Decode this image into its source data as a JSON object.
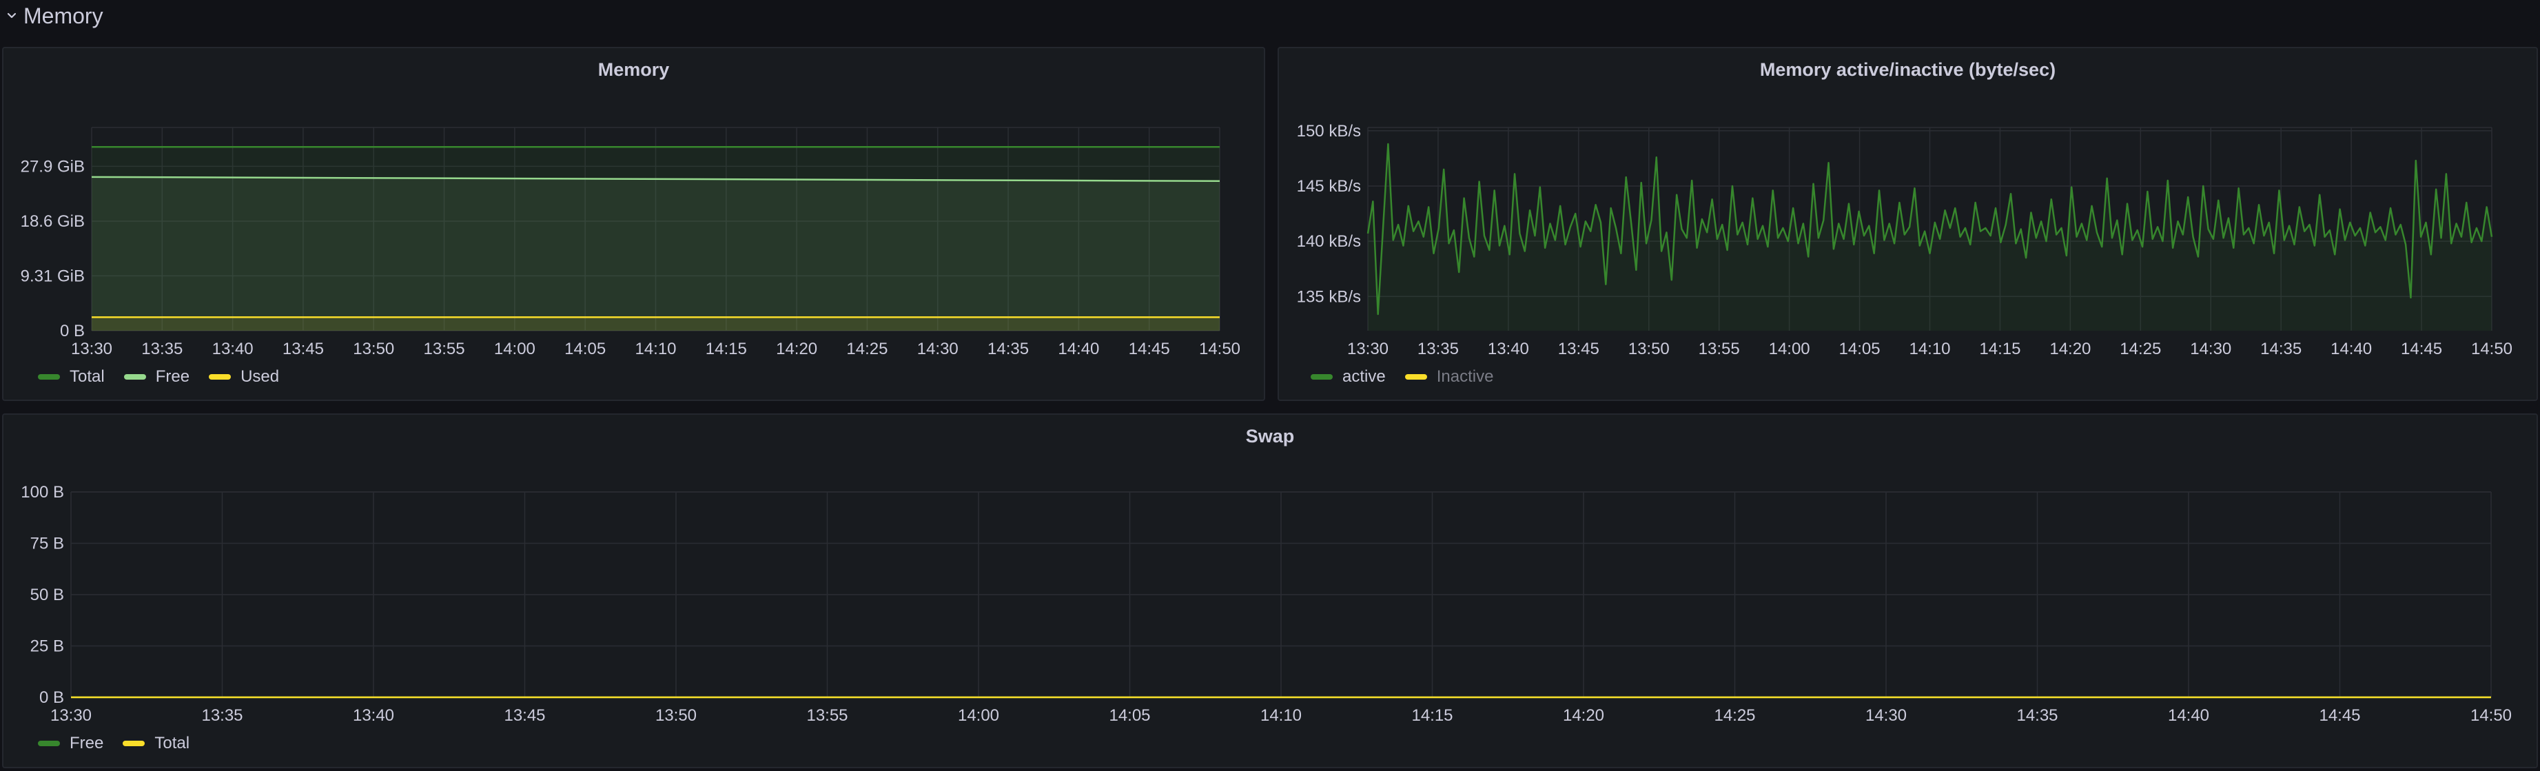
{
  "row": {
    "title": "Memory"
  },
  "panels": {
    "memory": {
      "title": "Memory",
      "legend": [
        {
          "name": "Total",
          "color": "#37872d"
        },
        {
          "name": "Free",
          "color": "#96d98d"
        },
        {
          "name": "Used",
          "color": "#fade2a"
        }
      ]
    },
    "active": {
      "title": "Memory active/inactive (byte/sec)",
      "legend": [
        {
          "name": "active",
          "color": "#37872d"
        },
        {
          "name": "Inactive",
          "color": "#fade2a"
        }
      ]
    },
    "swap": {
      "title": "Swap",
      "legend": [
        {
          "name": "Free",
          "color": "#37872d"
        },
        {
          "name": "Total",
          "color": "#fade2a"
        }
      ]
    }
  },
  "chart_data": [
    {
      "id": "memory",
      "type": "area",
      "title": "Memory",
      "unit": "GiB",
      "x_ticks": [
        "13:30",
        "13:35",
        "13:40",
        "13:45",
        "13:50",
        "13:55",
        "14:00",
        "14:05",
        "14:10",
        "14:15",
        "14:20",
        "14:25",
        "14:30",
        "14:35",
        "14:40",
        "14:45",
        "14:50"
      ],
      "y_ticks": [
        {
          "value": 0,
          "label": "0 B"
        },
        {
          "value": 9.31,
          "label": "9.31 GiB"
        },
        {
          "value": 18.6,
          "label": "18.6 GiB"
        },
        {
          "value": 27.9,
          "label": "27.9 GiB"
        }
      ],
      "ylim": [
        0,
        34.5
      ],
      "series": [
        {
          "name": "Total",
          "color": "#37872d",
          "x": [
            "13:30",
            "14:50"
          ],
          "values": [
            31.2,
            31.2
          ]
        },
        {
          "name": "Free",
          "color": "#96d98d",
          "x": [
            "13:30",
            "14:50"
          ],
          "values": [
            26.1,
            25.4
          ]
        },
        {
          "name": "Used",
          "color": "#fade2a",
          "x": [
            "13:30",
            "14:50"
          ],
          "values": [
            2.3,
            2.3
          ]
        }
      ]
    },
    {
      "id": "active",
      "type": "line",
      "title": "Memory active/inactive (byte/sec)",
      "unit": "kB/s",
      "x_ticks": [
        "13:30",
        "13:35",
        "13:40",
        "13:45",
        "13:50",
        "13:55",
        "14:00",
        "14:05",
        "14:10",
        "14:15",
        "14:20",
        "14:25",
        "14:30",
        "14:35",
        "14:40",
        "14:45",
        "14:50"
      ],
      "y_ticks": [
        {
          "value": 135,
          "label": "135 kB/s"
        },
        {
          "value": 140,
          "label": "140 kB/s"
        },
        {
          "value": 145,
          "label": "145 kB/s"
        },
        {
          "value": 150,
          "label": "150 kB/s"
        }
      ],
      "ylim": [
        131.9,
        150.3
      ],
      "series": [
        {
          "name": "active",
          "color": "#37872d",
          "x_start": "13:30",
          "x_end": "14:50",
          "values": [
            140.7,
            143.6,
            133.4,
            141.2,
            148.8,
            140.1,
            141.5,
            139.6,
            143.2,
            140.9,
            141.8,
            140.4,
            143.1,
            138.9,
            141.2,
            146.5,
            139.8,
            141.0,
            137.2,
            143.9,
            140.3,
            138.6,
            145.4,
            140.5,
            139.2,
            144.6,
            139.6,
            141.4,
            138.8,
            146.1,
            140.7,
            139.1,
            142.8,
            140.5,
            144.9,
            139.4,
            141.6,
            140.1,
            143.2,
            139.7,
            141.3,
            142.5,
            139.5,
            141.8,
            140.9,
            143.3,
            141.7,
            136.1,
            143.0,
            141.2,
            138.9,
            145.8,
            141.7,
            137.4,
            145.3,
            139.8,
            141.9,
            147.6,
            139.1,
            140.8,
            136.5,
            144.2,
            141.1,
            140.3,
            145.5,
            139.4,
            142.0,
            140.8,
            143.8,
            140.2,
            141.5,
            139.2,
            145.0,
            140.6,
            141.7,
            139.7,
            143.9,
            140.2,
            141.4,
            139.5,
            144.6,
            140.3,
            141.2,
            140.0,
            143.0,
            139.8,
            141.6,
            138.6,
            145.2,
            140.3,
            141.9,
            147.1,
            139.3,
            141.6,
            140.2,
            143.4,
            139.7,
            142.7,
            140.5,
            141.4,
            138.9,
            144.6,
            140.1,
            141.6,
            139.8,
            143.5,
            140.6,
            141.3,
            144.8,
            139.6,
            140.9,
            138.9,
            141.7,
            140.2,
            142.8,
            141.2,
            143.0,
            140.4,
            141.2,
            139.7,
            143.5,
            140.9,
            141.2,
            140.5,
            143.0,
            139.9,
            141.5,
            144.3,
            139.8,
            141.1,
            138.5,
            142.6,
            140.3,
            141.8,
            140.0,
            143.8,
            140.6,
            141.2,
            138.7,
            144.9,
            140.4,
            141.6,
            140.1,
            143.2,
            140.8,
            139.5,
            145.7,
            140.3,
            141.9,
            138.8,
            143.4,
            140.1,
            141.0,
            139.5,
            144.5,
            140.2,
            141.3,
            140.0,
            145.5,
            139.4,
            141.8,
            140.6,
            144.0,
            140.4,
            138.6,
            145.0,
            141.1,
            140.2,
            143.7,
            140.3,
            142.1,
            139.4,
            144.8,
            140.6,
            141.2,
            139.8,
            143.3,
            140.5,
            141.7,
            138.9,
            144.6,
            140.1,
            141.4,
            139.7,
            143.1,
            140.9,
            141.5,
            139.6,
            144.2,
            140.4,
            141.0,
            138.8,
            142.9,
            140.1,
            141.7,
            140.5,
            141.2,
            139.6,
            142.6,
            140.8,
            141.3,
            140.1,
            143.0,
            140.6,
            141.5,
            139.7,
            134.9,
            147.3,
            140.4,
            141.7,
            138.8,
            144.7,
            140.3,
            146.1,
            139.8,
            141.6,
            140.4,
            143.5,
            139.9,
            141.2,
            140.0,
            143.1,
            140.4
          ]
        },
        {
          "name": "Inactive",
          "color": "#fade2a",
          "values": []
        }
      ]
    },
    {
      "id": "swap",
      "type": "line",
      "title": "Swap",
      "unit": "B",
      "x_ticks": [
        "13:30",
        "13:35",
        "13:40",
        "13:45",
        "13:50",
        "13:55",
        "14:00",
        "14:05",
        "14:10",
        "14:15",
        "14:20",
        "14:25",
        "14:30",
        "14:35",
        "14:40",
        "14:45",
        "14:50"
      ],
      "y_ticks": [
        {
          "value": 0,
          "label": "0 B"
        },
        {
          "value": 25,
          "label": "25 B"
        },
        {
          "value": 50,
          "label": "50 B"
        },
        {
          "value": 75,
          "label": "75 B"
        },
        {
          "value": 100,
          "label": "100 B"
        }
      ],
      "ylim": [
        0,
        100
      ],
      "series": [
        {
          "name": "Free",
          "color": "#37872d",
          "x": [
            "13:30",
            "14:50"
          ],
          "values": [
            0,
            0
          ]
        },
        {
          "name": "Total",
          "color": "#fade2a",
          "x": [
            "13:30",
            "14:50"
          ],
          "values": [
            0,
            0
          ]
        }
      ]
    }
  ]
}
